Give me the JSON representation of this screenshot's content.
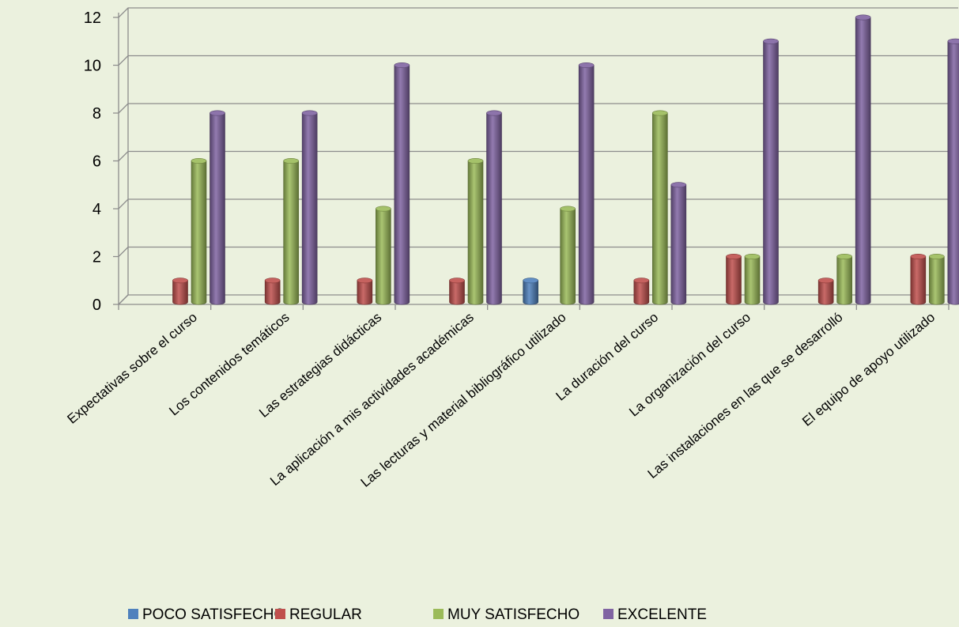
{
  "chart_data": {
    "type": "bar",
    "title": "",
    "xlabel": "",
    "ylabel": "",
    "ylim": [
      0,
      12
    ],
    "yticks": [
      0,
      2,
      4,
      6,
      8,
      10,
      12
    ],
    "grid": true,
    "legend_position": "bottom",
    "categories": [
      "Expectativas sobre el curso",
      "Los contenidos temáticos",
      "Las estrategias didácticas",
      "La aplicación a mis actividades académicas",
      "Las lecturas y material bibliográfico utilizado",
      "La duración del curso",
      "La organización del curso",
      "Las instalaciones en las que se desarrolló",
      "El equipo de apoyo utilizado"
    ],
    "series": [
      {
        "name": "POCO SATISFECHO",
        "color": "#4f81bd",
        "values": [
          0,
          0,
          0,
          0,
          1,
          0,
          0,
          0,
          0
        ]
      },
      {
        "name": "REGULAR",
        "color": "#c0504d",
        "values": [
          1,
          1,
          1,
          1,
          0,
          1,
          2,
          1,
          2
        ]
      },
      {
        "name": "MUY SATISFECHO",
        "color": "#9bbb59",
        "values": [
          6,
          6,
          4,
          6,
          4,
          8,
          2,
          2,
          2
        ]
      },
      {
        "name": "EXCELENTE",
        "color": "#8064a2",
        "values": [
          8,
          8,
          10,
          8,
          10,
          5,
          11,
          12,
          11
        ]
      }
    ]
  }
}
